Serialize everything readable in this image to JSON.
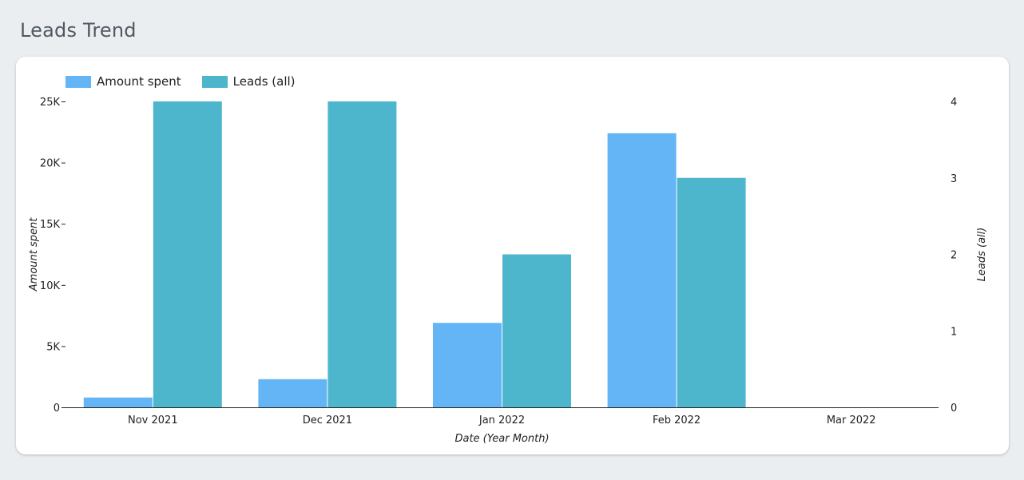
{
  "page": {
    "title": "Leads Trend"
  },
  "colors": {
    "amount_spent": "#64b5f6",
    "leads": "#4db6cc",
    "axis": "#222222"
  },
  "chart_data": {
    "type": "bar",
    "categories": [
      "Nov 2021",
      "Dec 2021",
      "Jan 2022",
      "Feb 2022",
      "Mar 2022"
    ],
    "series": [
      {
        "name": "Amount spent",
        "axis": "left",
        "values": [
          800,
          2300,
          6900,
          22400,
          0
        ]
      },
      {
        "name": "Leads (all)",
        "axis": "right",
        "values": [
          4,
          4,
          2,
          3,
          0
        ]
      }
    ],
    "xlabel": "Date (Year Month)",
    "ylabel": "Amount spent",
    "y2label": "Leads (all)",
    "ylim": [
      0,
      25000
    ],
    "y2lim": [
      0,
      4
    ],
    "yticks": [
      0,
      5000,
      10000,
      15000,
      20000,
      25000
    ],
    "ytick_labels": [
      "0",
      "5K",
      "10K",
      "15K",
      "20K",
      "25K"
    ],
    "y2ticks": [
      0,
      1,
      2,
      3,
      4
    ],
    "y2tick_labels": [
      "0",
      "1",
      "2",
      "3",
      "4"
    ],
    "grid": false,
    "legend": "top-left"
  }
}
